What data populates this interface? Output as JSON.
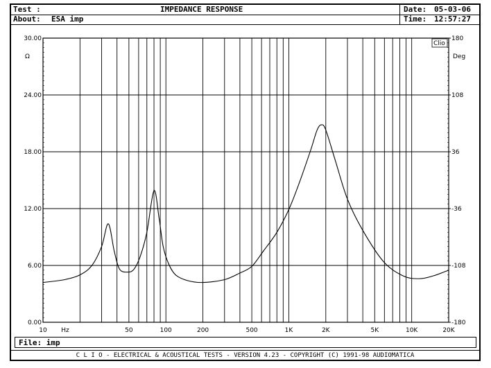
{
  "header": {
    "test_label": "Test :",
    "title": "IMPEDANCE RESPONSE",
    "about_label": "About:",
    "about_value": "ESA imp",
    "date_label": "Date:",
    "date_value": "05-03-06",
    "time_label": "Time:",
    "time_value": "12:57:27"
  },
  "file": {
    "label": "File:",
    "value": "imp"
  },
  "footer": {
    "text": "C L I O  -  ELECTRICAL & ACOUSTICAL TESTS  -  VERSION 4.23  -  COPYRIGHT (C) 1991-98 AUDIOMATICA"
  },
  "chart_data": {
    "type": "line",
    "title": "IMPEDANCE RESPONSE",
    "logo": "Clio",
    "xscale": "log",
    "xlim": [
      10,
      20000
    ],
    "xunit": "Hz",
    "xticks": [
      {
        "v": 10,
        "label": "10"
      },
      {
        "v": 50,
        "label": "50"
      },
      {
        "v": 100,
        "label": "100"
      },
      {
        "v": 200,
        "label": "200"
      },
      {
        "v": 500,
        "label": "500"
      },
      {
        "v": 1000,
        "label": "1K"
      },
      {
        "v": 2000,
        "label": "2K"
      },
      {
        "v": 5000,
        "label": "5K"
      },
      {
        "v": 10000,
        "label": "10K"
      },
      {
        "v": 20000,
        "label": "20K"
      }
    ],
    "ylim": [
      0,
      30
    ],
    "yunit": "Ω",
    "yticks": [
      "0.00",
      "6.00",
      "12.00",
      "18.00",
      "24.00",
      "30.00"
    ],
    "y2lim": [
      -180,
      180
    ],
    "y2unit": "Deg",
    "y2ticks": [
      "-180",
      "-108",
      "-36",
      "36",
      "108",
      "180"
    ],
    "grid": true,
    "line_color": "#000000",
    "series": [
      {
        "x": [
          10,
          15,
          20,
          25,
          30,
          34,
          38,
          42,
          49,
          55,
          62,
          70,
          80,
          88,
          95,
          105,
          120,
          150,
          200,
          300,
          400,
          500,
          620,
          800,
          1000,
          1200,
          1500,
          1700,
          1845,
          2000,
          2400,
          3000,
          4000,
          5900,
          8500,
          11500,
          15000,
          20000
        ],
        "y": [
          4.2,
          4.5,
          5.0,
          6.0,
          8.0,
          10.4,
          7.5,
          5.6,
          5.3,
          5.6,
          7.0,
          9.5,
          13.9,
          11.0,
          8.0,
          6.2,
          5.0,
          4.4,
          4.2,
          4.5,
          5.2,
          5.9,
          7.5,
          9.5,
          11.9,
          14.5,
          18.1,
          20.3,
          20.85,
          20.3,
          17.0,
          13.0,
          9.7,
          6.4,
          4.9,
          4.6,
          4.9,
          5.5
        ]
      }
    ]
  }
}
